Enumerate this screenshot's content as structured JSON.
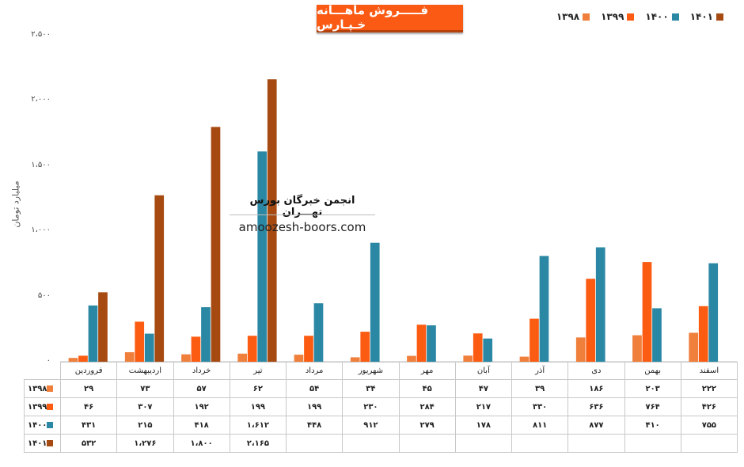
{
  "title": "فـــــروش ماهـــانه خـپـارس",
  "ylabel": "میلیارد تومان",
  "watermark": {
    "line1": "انجمن خبرگان بورس تهـــران",
    "line2": "amoozesh-boors.com"
  },
  "chart_data": {
    "type": "bar",
    "categories": [
      "فروردین",
      "اردیبهشت",
      "خرداد",
      "تیر",
      "مرداد",
      "شهریور",
      "مهر",
      "آبان",
      "آذر",
      "دی",
      "بهمن",
      "اسفند"
    ],
    "ylim": [
      0,
      2500
    ],
    "yticks": [
      0,
      500,
      1000,
      1500,
      2000,
      2500
    ],
    "ytick_labels": [
      "۰",
      "۵۰۰",
      "۱،۰۰۰",
      "۱،۵۰۰",
      "۲،۰۰۰",
      "۲،۵۰۰"
    ],
    "legend_position": "top-right",
    "grid": false,
    "series": [
      {
        "name": "۱۳۹۸",
        "color": "#ef7f3a",
        "values": [
          29,
          73,
          57,
          62,
          54,
          34,
          45,
          47,
          39,
          186,
          203,
          222
        ],
        "labels": [
          "۲۹",
          "۷۳",
          "۵۷",
          "۶۲",
          "۵۴",
          "۳۴",
          "۴۵",
          "۴۷",
          "۳۹",
          "۱۸۶",
          "۲۰۳",
          "۲۲۲"
        ]
      },
      {
        "name": "۱۳۹۹",
        "color": "#fc5b12",
        "values": [
          46,
          307,
          192,
          199,
          199,
          230,
          284,
          217,
          330,
          636,
          764,
          426
        ],
        "labels": [
          "۴۶",
          "۳۰۷",
          "۱۹۲",
          "۱۹۹",
          "۱۹۹",
          "۲۳۰",
          "۲۸۴",
          "۲۱۷",
          "۳۳۰",
          "۶۳۶",
          "۷۶۴",
          "۴۲۶"
        ]
      },
      {
        "name": "۱۴۰۰",
        "color": "#2b88a4",
        "values": [
          431,
          215,
          418,
          1612,
          448,
          912,
          279,
          178,
          811,
          877,
          410,
          755
        ],
        "labels": [
          "۴۳۱",
          "۲۱۵",
          "۴۱۸",
          "۱،۶۱۲",
          "۴۴۸",
          "۹۱۲",
          "۲۷۹",
          "۱۷۸",
          "۸۱۱",
          "۸۷۷",
          "۴۱۰",
          "۷۵۵"
        ]
      },
      {
        "name": "۱۴۰۱",
        "color": "#a64a12",
        "values": [
          532,
          1276,
          1800,
          2165,
          null,
          null,
          null,
          null,
          null,
          null,
          null,
          null
        ],
        "labels": [
          "۵۳۲",
          "۱،۲۷۶",
          "۱،۸۰۰",
          "۲،۱۶۵",
          "",
          "",
          "",
          "",
          "",
          "",
          "",
          ""
        ]
      }
    ]
  }
}
